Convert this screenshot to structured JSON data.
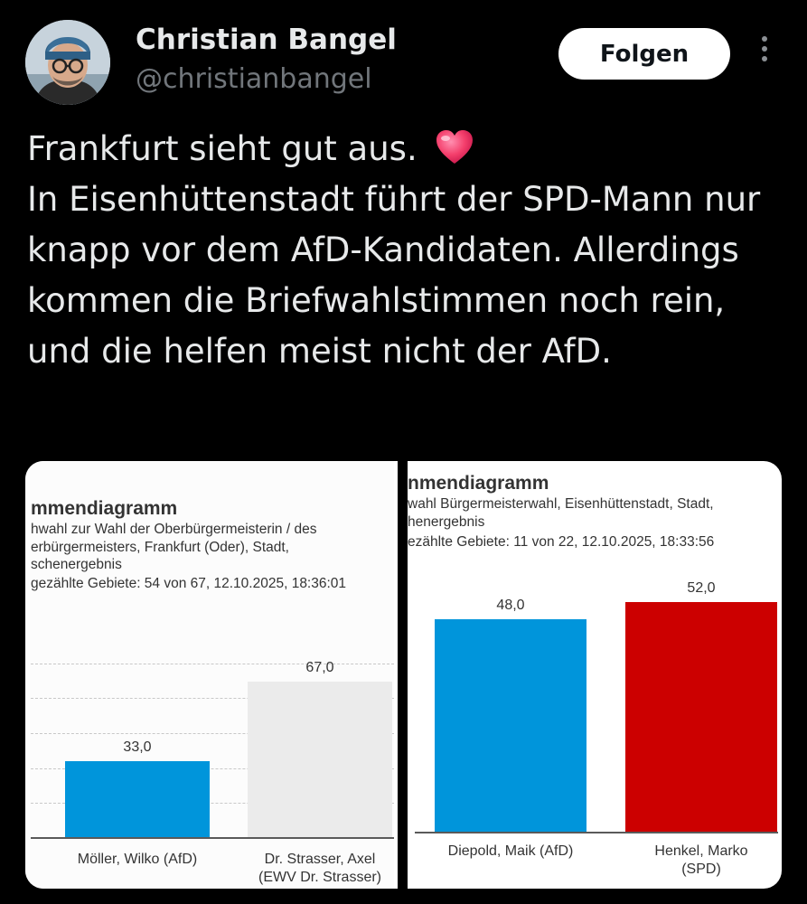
{
  "author": {
    "name": "Christian Bangel",
    "handle": "@christianbangel"
  },
  "follow_button": {
    "label": "Folgen"
  },
  "tweet": {
    "lines": [
      "Frankfurt sieht gut aus.",
      "In Eisenhüttenstadt führt der SPD-Mann nur knapp vor dem AfD-Kandidaten. Allerdings kommen die Briefwahlstimmen noch rein, und die helfen meist nicht der AfD."
    ],
    "emoji": "heart-emoji"
  },
  "charts": {
    "left": {
      "title": "mmendiagramm",
      "subtitle": [
        "hwahl zur Wahl der Oberbürgermeisterin / des",
        "erbürgermeisters, Frankfurt (Oder), Stadt,",
        "schenergebnis",
        "gezählte Gebiete: 54 von 67, 12.10.2025, 18:36:01"
      ]
    },
    "right": {
      "title": "nmendiagramm",
      "subtitle": [
        "wahl Bürgermeisterwahl, Eisenhüttenstadt, Stadt,",
        "henergebnis",
        "ezählte Gebiete: 11 von 22, 12.10.2025, 18:33:56"
      ]
    }
  },
  "chart_data": [
    {
      "type": "bar",
      "categories": [
        [
          "Möller, Wilko (AfD)"
        ],
        [
          "Dr. Strasser, Axel",
          "(EWV Dr. Strasser)"
        ]
      ],
      "values": [
        33.0,
        67.0
      ],
      "value_labels": [
        "33,0",
        "67,0"
      ],
      "colors": [
        "#0095db",
        "#ebebeb"
      ],
      "ylim": [
        0,
        90
      ],
      "grid": true
    },
    {
      "type": "bar",
      "categories": [
        [
          "Diepold, Maik (AfD)"
        ],
        [
          "Henkel, Marko",
          "(SPD)"
        ]
      ],
      "values": [
        48.0,
        52.0
      ],
      "value_labels": [
        "48,0",
        "52,0"
      ],
      "colors": [
        "#0095db",
        "#cc0000"
      ],
      "ylim": [
        0,
        54
      ],
      "grid": false
    }
  ]
}
